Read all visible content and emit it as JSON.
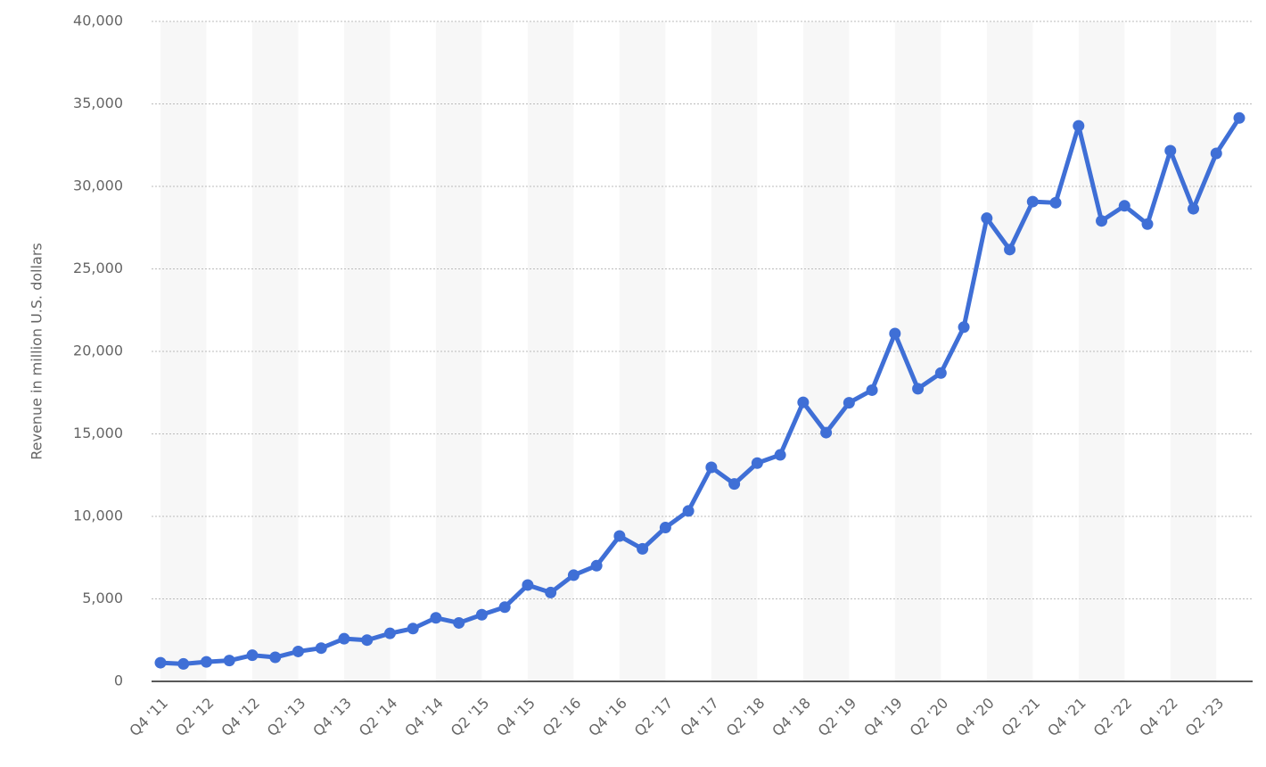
{
  "chart_data": {
    "type": "line",
    "y_label": "Revenue in million U.S. dollars",
    "categories": [
      "Q4 '11",
      null,
      "Q2 '12",
      null,
      "Q4 '12",
      null,
      "Q2 '13",
      null,
      "Q4 '13",
      null,
      "Q2 '14",
      null,
      "Q4 '14",
      null,
      "Q2 '15",
      null,
      "Q4 '15",
      null,
      "Q2 '16",
      null,
      "Q4 '16",
      null,
      "Q2 '17",
      null,
      "Q4 '17",
      null,
      "Q2 '18",
      null,
      "Q4 '18",
      null,
      "Q2 '19",
      null,
      "Q4 '19",
      null,
      "Q2 '20",
      null,
      "Q4 '20",
      null,
      "Q2 '21",
      null,
      "Q4 '21",
      null,
      "Q2 '22",
      null,
      "Q4 '22",
      null,
      "Q2 '23",
      null
    ],
    "series": [
      {
        "name": "Revenue",
        "color": "#3f6fd6",
        "values": [
          1131,
          1058,
          1184,
          1262,
          1585,
          1458,
          1813,
          2016,
          2585,
          2502,
          2910,
          3203,
          3851,
          3543,
          4042,
          4501,
          5841,
          5382,
          6436,
          7011,
          8809,
          8032,
          9321,
          10328,
          12972,
          11966,
          13231,
          13727,
          16914,
          15077,
          16886,
          17652,
          21082,
          17737,
          18687,
          21470,
          28072,
          26171,
          29077,
          29010,
          33671,
          27908,
          28822,
          27714,
          32165,
          28645,
          31999,
          34146
        ]
      }
    ],
    "ylim": [
      0,
      40000
    ],
    "yticks": [
      0,
      {
        "value": 5000,
        "label": "5,000"
      },
      {
        "value": 10000,
        "label": "10,000"
      },
      {
        "value": 15000,
        "label": "15,000"
      },
      {
        "value": 20000,
        "label": "20,000"
      },
      {
        "value": 25000,
        "label": "25,000"
      },
      {
        "value": 30000,
        "label": "30,000"
      },
      {
        "value": 35000,
        "label": "35,000"
      },
      {
        "value": 40000,
        "label": "40,000"
      }
    ],
    "grid": true
  }
}
